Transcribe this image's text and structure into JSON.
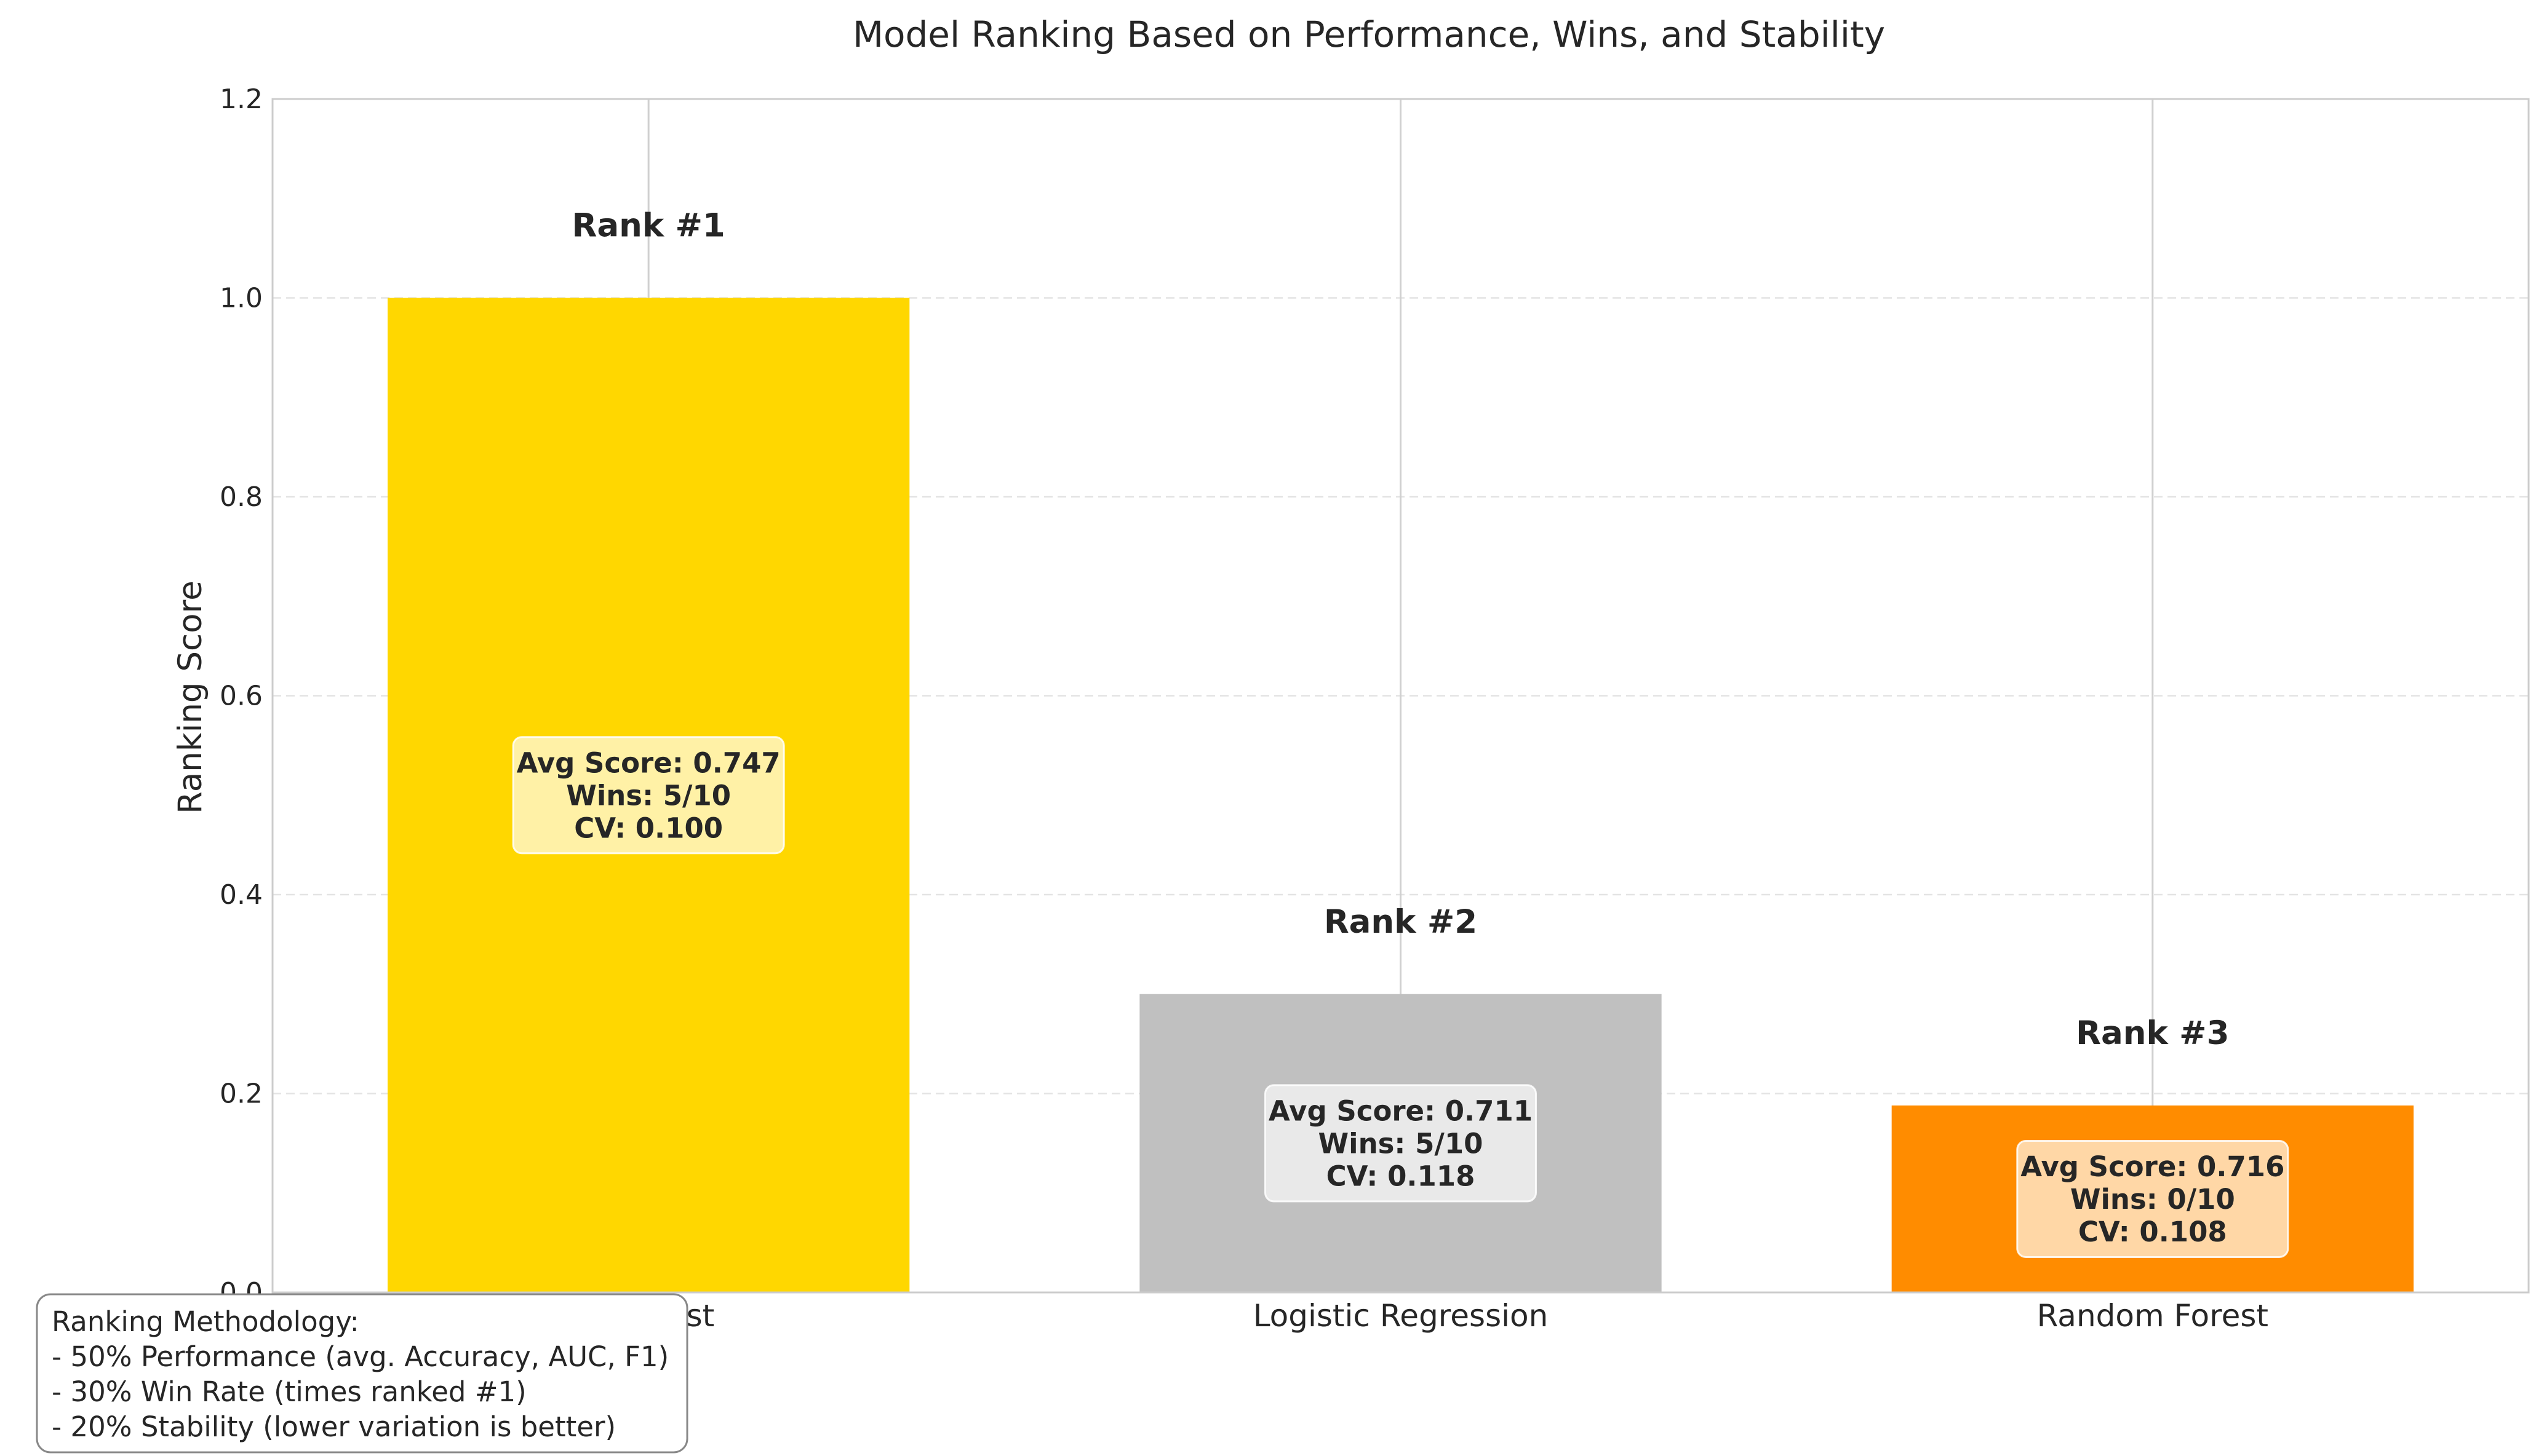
{
  "chart_data": {
    "type": "bar",
    "title": "Model Ranking Based on Performance, Wins, and Stability",
    "xlabel": "",
    "ylabel": "Ranking Score",
    "ylim": [
      0,
      1.2
    ],
    "yticks": [
      "0.0",
      "0.2",
      "0.4",
      "0.6",
      "0.8",
      "1.0",
      "1.2"
    ],
    "grid": true,
    "categories": [
      "XGBoost",
      "Logistic Regression",
      "Random Forest"
    ],
    "values": [
      1.0,
      0.3,
      0.188
    ],
    "colors": [
      "#FFD700",
      "#C0C0C0",
      "#FF8C00"
    ],
    "rank_labels": [
      "Rank #1",
      "Rank #2",
      "Rank #3"
    ],
    "annotations": [
      [
        "Avg Score: 0.747",
        "Wins: 5/10",
        "CV: 0.100"
      ],
      [
        "Avg Score: 0.711",
        "Wins: 5/10",
        "CV: 0.118"
      ],
      [
        "Avg Score: 0.716",
        "Wins: 0/10",
        "CV: 0.108"
      ]
    ],
    "methodology": [
      "Ranking Methodology:",
      "- 50% Performance (avg. Accuracy, AUC, F1)",
      "- 30% Win Rate (times ranked #1)",
      "- 20% Stability (lower variation is better)"
    ]
  }
}
